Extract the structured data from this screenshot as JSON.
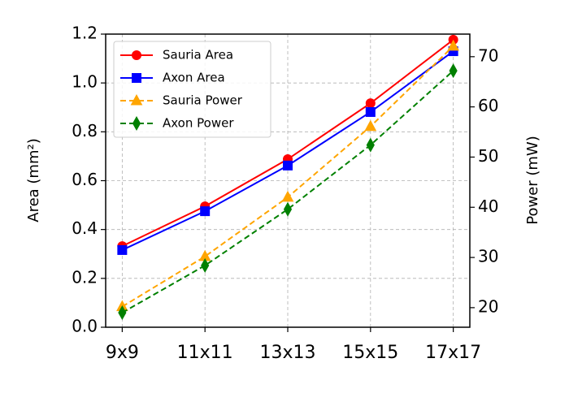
{
  "chart_data": {
    "type": "line",
    "categories": [
      "9x9",
      "11x11",
      "13x13",
      "15x15",
      "17x17"
    ],
    "y_label": "Area (mm²)",
    "y2_label": "Power (mW)",
    "ylim": [
      0,
      1.2
    ],
    "yticks": [
      {
        "value": 0,
        "label": "0.0"
      },
      {
        "value": 0.2,
        "label": "0.2"
      },
      {
        "value": 0.4,
        "label": "0.4"
      },
      {
        "value": 0.6,
        "label": "0.6"
      },
      {
        "value": 0.8,
        "label": "0.8"
      },
      {
        "value": 1,
        "label": "1.0"
      },
      {
        "value": 1.2,
        "label": "1.2"
      }
    ],
    "y2lim": [
      16.1,
      74.5
    ],
    "y2ticks": [
      20,
      30,
      40,
      50,
      60,
      70
    ],
    "grid": true,
    "legend": "upper-left",
    "series": [
      {
        "name": "Sauria Area",
        "color": "#ff0000",
        "marker": "circle",
        "dash": "solid",
        "values": [
          0.332,
          0.495,
          0.688,
          0.917,
          1.177
        ]
      },
      {
        "name": "Axon Area",
        "color": "#0000ff",
        "marker": "square",
        "dash": "solid",
        "values": [
          0.316,
          0.475,
          0.662,
          0.881,
          1.13
        ]
      },
      {
        "name": "Sauria Power",
        "color": "#ffa500",
        "marker": "triangle",
        "dash": "dashed",
        "axis": "y2",
        "values": [
          20.2,
          30.2,
          42.0,
          56.1,
          72.1
        ]
      },
      {
        "name": "Axon Power",
        "color": "#008000",
        "marker": "diamond",
        "dash": "dashed",
        "axis": "y2",
        "values": [
          19.0,
          28.4,
          39.6,
          52.4,
          67.2
        ]
      }
    ]
  }
}
